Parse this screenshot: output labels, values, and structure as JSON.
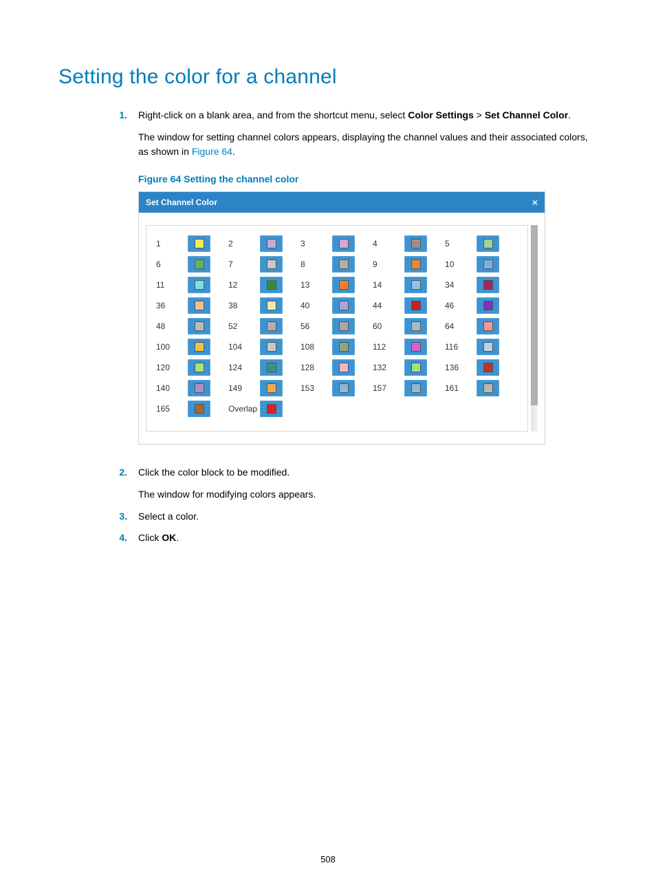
{
  "page": {
    "title": "Setting the color for a channel",
    "number": "508"
  },
  "steps": [
    {
      "num": "1.",
      "text_pre": "Right-click on a blank area, and from the shortcut menu, select ",
      "bold1": "Color Settings",
      "sep": " > ",
      "bold2": "Set Channel Color",
      "text_post": ".",
      "para2_pre": "The window for setting channel colors appears, displaying the channel values and their associated colors, as shown in ",
      "para2_link": "Figure 64",
      "para2_post": "."
    },
    {
      "num": "2.",
      "line1": "Click the color block to be modified.",
      "line2": "The window for modifying colors appears."
    },
    {
      "num": "3.",
      "line1": "Select a color."
    },
    {
      "num": "4.",
      "pre": "Click ",
      "bold": "OK",
      "post": "."
    }
  ],
  "figure": {
    "caption": "Figure 64 Setting the channel color",
    "window_title": "Set Channel Color",
    "close_glyph": "×"
  },
  "channel_grid": {
    "button_bg": "#3d94d1",
    "swatch_border": "#555555",
    "rows": [
      [
        {
          "label": "1",
          "color": "#f2e85b"
        },
        {
          "label": "2",
          "color": "#caa7d8"
        },
        {
          "label": "3",
          "color": "#d9a7d0"
        },
        {
          "label": "4",
          "color": "#a98a8a"
        },
        {
          "label": "5",
          "color": "#9dd49a"
        }
      ],
      [
        {
          "label": "6",
          "color": "#5fb65f"
        },
        {
          "label": "7",
          "color": "#c8c8c8"
        },
        {
          "label": "8",
          "color": "#b0b0b0"
        },
        {
          "label": "9",
          "color": "#e38a3b"
        },
        {
          "label": "10",
          "color": "#7bb3e0"
        }
      ],
      [
        {
          "label": "11",
          "color": "#7ee2e2"
        },
        {
          "label": "12",
          "color": "#3a8a3a"
        },
        {
          "label": "13",
          "color": "#f08030"
        },
        {
          "label": "14",
          "color": "#8fc4ea"
        },
        {
          "label": "34",
          "color": "#a0285a"
        }
      ],
      [
        {
          "label": "36",
          "color": "#f0c088"
        },
        {
          "label": "38",
          "color": "#f2e8a8"
        },
        {
          "label": "40",
          "color": "#b0a0e0"
        },
        {
          "label": "44",
          "color": "#c02020"
        },
        {
          "label": "46",
          "color": "#8030c0"
        }
      ],
      [
        {
          "label": "48",
          "color": "#bababa"
        },
        {
          "label": "52",
          "color": "#b0b0b0"
        },
        {
          "label": "56",
          "color": "#a8a8a8"
        },
        {
          "label": "60",
          "color": "#a8bcc8"
        },
        {
          "label": "64",
          "color": "#f09898"
        }
      ],
      [
        {
          "label": "100",
          "color": "#f0c050"
        },
        {
          "label": "104",
          "color": "#c0c8d0"
        },
        {
          "label": "108",
          "color": "#8aa87a"
        },
        {
          "label": "112",
          "color": "#d060d0"
        },
        {
          "label": "116",
          "color": "#b8d0e8"
        }
      ],
      [
        {
          "label": "120",
          "color": "#b0e070"
        },
        {
          "label": "124",
          "color": "#409080"
        },
        {
          "label": "128",
          "color": "#f0b8c0"
        },
        {
          "label": "132",
          "color": "#a0e080"
        },
        {
          "label": "136",
          "color": "#c03030"
        }
      ],
      [
        {
          "label": "140",
          "color": "#a890d0"
        },
        {
          "label": "149",
          "color": "#f0a850"
        },
        {
          "label": "153",
          "color": "#88b8e0"
        },
        {
          "label": "157",
          "color": "#90b8d8"
        },
        {
          "label": "161",
          "color": "#b8b8b8"
        }
      ],
      [
        {
          "label": "165",
          "color": "#a06838"
        },
        {
          "label": "Overlap",
          "color": "#e02020"
        }
      ]
    ]
  }
}
